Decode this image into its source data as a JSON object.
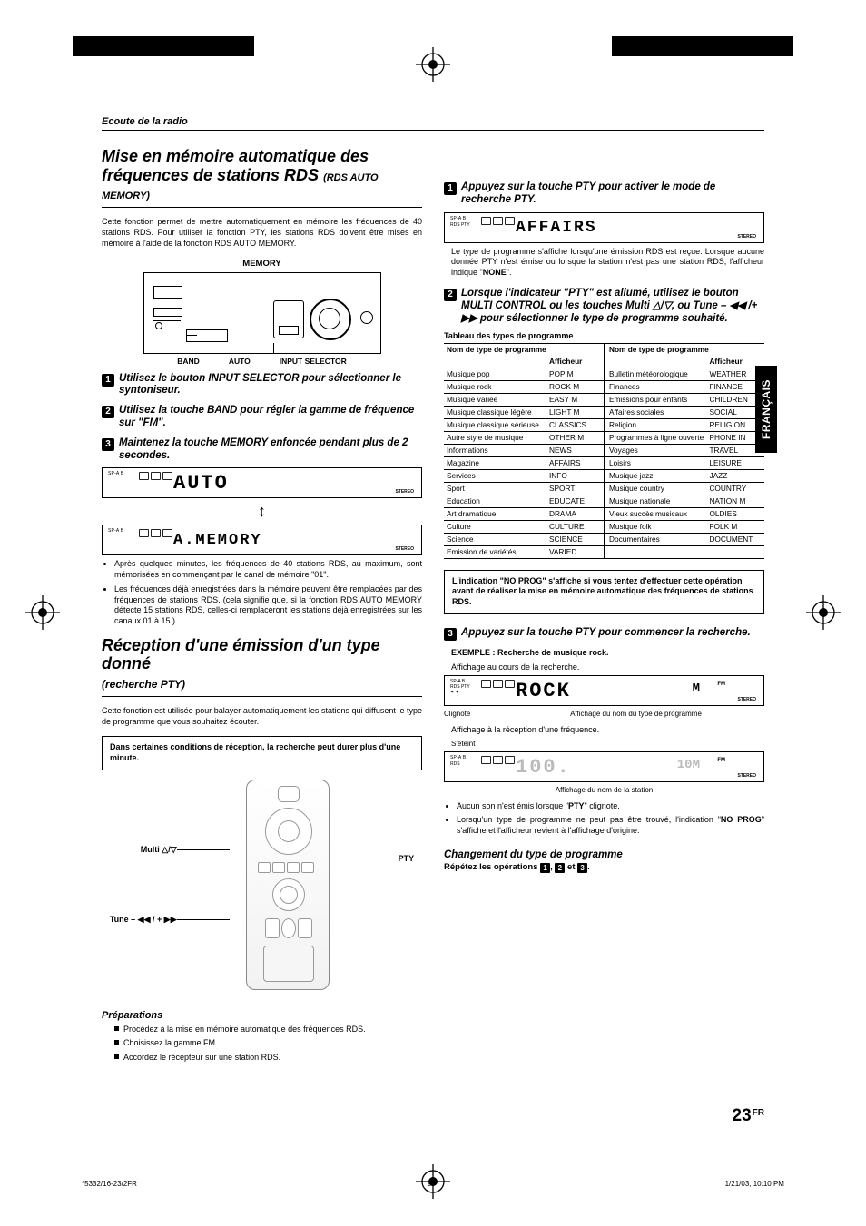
{
  "page": {
    "running_head": "Ecoute de la radio",
    "number": "23",
    "lang_super": "FR",
    "lang_tab": "FRANÇAIS",
    "footer_left": "*5332/16-23/2FR",
    "footer_center": "23",
    "footer_right": "1/21/03, 10:10 PM"
  },
  "left": {
    "sec1_title_l1": "Mise en mémoire automatique des",
    "sec1_title_l2": "fréquences de stations RDS",
    "sec1_title_sub": "(RDS AUTO MEMORY)",
    "sec1_para": "Cette fonction permet de mettre automatiquement en mémoire les fréquences de 40 stations RDS. Pour utiliser la fonction PTY, les stations RDS doivent être mises en mémoire à l'aide de la fonction RDS AUTO MEMORY.",
    "fig1_caption": "MEMORY",
    "callout_band": "BAND",
    "callout_auto": "AUTO",
    "callout_sel": "INPUT SELECTOR",
    "s1_n": "1",
    "s1_t": "Utilisez le bouton INPUT SELECTOR pour sélectionner le syntoniseur.",
    "s2_n": "2",
    "s2_t": "Utilisez la touche BAND pour régler la gamme de fréquence sur \"FM\".",
    "s3_n": "3",
    "s3_t": "Maintenez la touche MEMORY enfoncée pendant plus de 2 secondes.",
    "lcd1_sp": "SP-A B",
    "lcd1_seg": "AUTO",
    "lcd2_seg": "A.MEMORY",
    "lcd_stereo": "STEREO",
    "bul1": "Après quelques minutes, les fréquences de 40 stations RDS, au maximum, sont mémorisées en commençant par le canal de mémoire \"01\".",
    "bul2": "Les fréquences déjà enregistrées dans la mémoire peuvent être remplacées par des fréquences de stations RDS. (cela signifie que, si la fonction RDS AUTO MEMORY détecte 15 stations RDS, celles-ci remplaceront les stations déjà enregistrées sur les canaux 01 à 15.)",
    "sec2_title": "Réception d'une émission d'un type donné",
    "sec2_sub": "(recherche PTY)",
    "sec2_para": "Cette fonction est utilisée pour balayer automatiquement les stations qui diffusent le type de programme que vous souhaitez écouter.",
    "sec2_note": "Dans certaines conditions de réception, la recherche peut durer plus d'une minute.",
    "remote_multi": "Multi △/▽",
    "remote_pty": "PTY",
    "remote_tune": "Tune – ◀◀ / + ▶▶",
    "prep_head": "Préparations",
    "prep_b1": "Procédez à la mise en mémoire automatique des fréquences RDS.",
    "prep_b2": "Choisissez la gamme FM.",
    "prep_b3": "Accordez le récepteur sur une station RDS."
  },
  "right": {
    "s1_n": "1",
    "s1_t": "Appuyez sur la touche PTY pour activer le mode de recherche PTY.",
    "lcd1_sp": "SP-A B",
    "lcd1_rds": "RDS PTY",
    "lcd1_seg": "AFFAIRS",
    "after_lcd1": "Le type de programme s'affiche lorsqu'une émission RDS est reçue. Lorsque aucune donnée PTY n'est émise ou lorsque la station n'est pas une station RDS, l'afficheur indique \"NONE\".",
    "s2_n": "2",
    "s2_t": "Lorsque l'indicateur \"PTY\" est allumé, utilisez le bouton MULTI CONTROL ou les touches Multi △/▽, ou Tune  – ◀◀ /+ ▶▶ pour sélectionner le type de programme souhaité.",
    "tbl_title": "Tableau des types de programme",
    "tbl_h1": "Nom de type de programme",
    "tbl_h2": "Afficheur",
    "table_left": [
      [
        "Musique pop",
        "POP M"
      ],
      [
        "Musique rock",
        "ROCK M"
      ],
      [
        "Musique variée",
        "EASY M"
      ],
      [
        "Musique classique légère",
        "LIGHT M"
      ],
      [
        "Musique classique sérieuse",
        "CLASSICS"
      ],
      [
        "Autre style de musique",
        "OTHER M"
      ],
      [
        "Informations",
        "NEWS"
      ],
      [
        "Magazine",
        "AFFAIRS"
      ],
      [
        "Services",
        "INFO"
      ],
      [
        "Sport",
        "SPORT"
      ],
      [
        "Education",
        "EDUCATE"
      ],
      [
        "Art dramatique",
        "DRAMA"
      ],
      [
        "Culture",
        "CULTURE"
      ],
      [
        "Science",
        "SCIENCE"
      ],
      [
        "Emission de variétés",
        "VARIED"
      ]
    ],
    "table_right": [
      [
        "Bulletin météorologique",
        "WEATHER"
      ],
      [
        "Finances",
        "FINANCE"
      ],
      [
        "Emissions pour enfants",
        "CHILDREN"
      ],
      [
        "Affaires sociales",
        "SOCIAL"
      ],
      [
        "Religion",
        "RELIGION"
      ],
      [
        "Programmes à ligne ouverte",
        "PHONE IN"
      ],
      [
        "Voyages",
        "TRAVEL"
      ],
      [
        "Loisirs",
        "LEISURE"
      ],
      [
        "Musique jazz",
        "JAZZ"
      ],
      [
        "Musique country",
        "COUNTRY"
      ],
      [
        "Musique nationale",
        "NATION M"
      ],
      [
        "Vieux succès musicaux",
        "OLDIES"
      ],
      [
        "Musique folk",
        "FOLK M"
      ],
      [
        "Documentaires",
        "DOCUMENT"
      ],
      [
        "",
        ""
      ]
    ],
    "note_box": "L'indication \"NO PROG\" s'affiche si vous tentez d'effectuer cette opération avant de réaliser la mise en mémoire automatique des fréquences de stations RDS.",
    "s3_n": "3",
    "s3_t": "Appuyez sur la touche PTY pour commencer la recherche.",
    "example_head": "EXEMPLE : Recherche de musique rock.",
    "ex_line1": "Affichage au cours de la recherche.",
    "lcd2_seg": "ROCK",
    "lcd2_extra": "M",
    "lcd2_fm": "FM",
    "lcd2_cap_l": "Clignote",
    "lcd2_cap_r": "Affichage du nom du type de programme",
    "ex_line2": "Affichage à la réception d'une fréquence.",
    "lcd3_pre": "S'éteint",
    "lcd3_seg": "100.",
    "lcd3_extra": "10M",
    "lcd3_fm": "FM",
    "lcd3_cap": "Affichage du nom de la station",
    "end_b1": "Aucun son n'est émis lorsque \"PTY\" clignote.",
    "end_b2": "Lorsqu'un type de programme ne peut pas être trouvé, l'indication \"NO PROG\" s'affiche et l'afficheur revient à l'affichage d'origine.",
    "change_head": "Changement du type de programme",
    "change_line_a": "Répétez les opérations ",
    "change_line_b": ", ",
    "change_line_c": " et ",
    "change_line_d": ".",
    "n1": "1",
    "n2": "2",
    "n3": "3",
    "lcd_stereo": "STEREO"
  }
}
